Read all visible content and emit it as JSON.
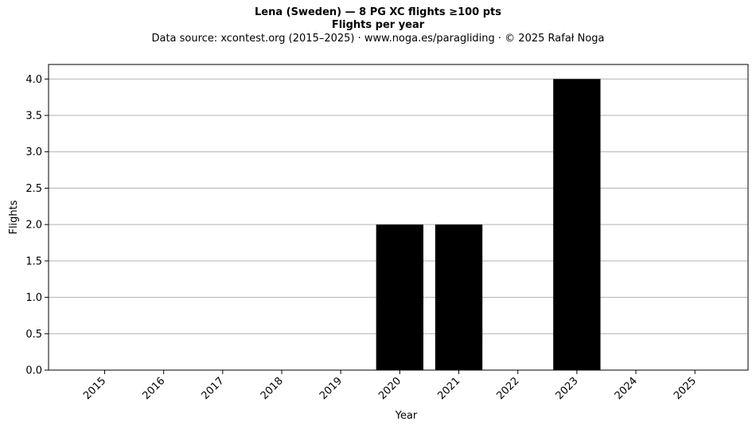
{
  "header": {
    "title": "Lena (Sweden)  —  8 PG XC flights ≥100 pts",
    "subtitle": "Flights per year",
    "source": "Data source: xcontest.org (2015–2025)  ·  www.noga.es/paragliding  ·  © 2025 Rafał Noga"
  },
  "chart_data": {
    "type": "bar",
    "title": "Lena (Sweden)  —  8 PG XC flights ≥100 pts",
    "subtitle": "Flights per year",
    "xlabel": "Year",
    "ylabel": "Flights",
    "categories": [
      "2015",
      "2016",
      "2017",
      "2018",
      "2019",
      "2020",
      "2021",
      "2022",
      "2023",
      "2024",
      "2025"
    ],
    "values": [
      0,
      0,
      0,
      0,
      0,
      2,
      2,
      0,
      4,
      0,
      0
    ],
    "ylim": [
      0,
      4.2
    ],
    "yticks": [
      "0.0",
      "0.5",
      "1.0",
      "1.5",
      "2.0",
      "2.5",
      "3.0",
      "3.5",
      "4.0"
    ],
    "grid": "y",
    "bar_color": "#000000",
    "grid_color": "#b0b0b0"
  }
}
